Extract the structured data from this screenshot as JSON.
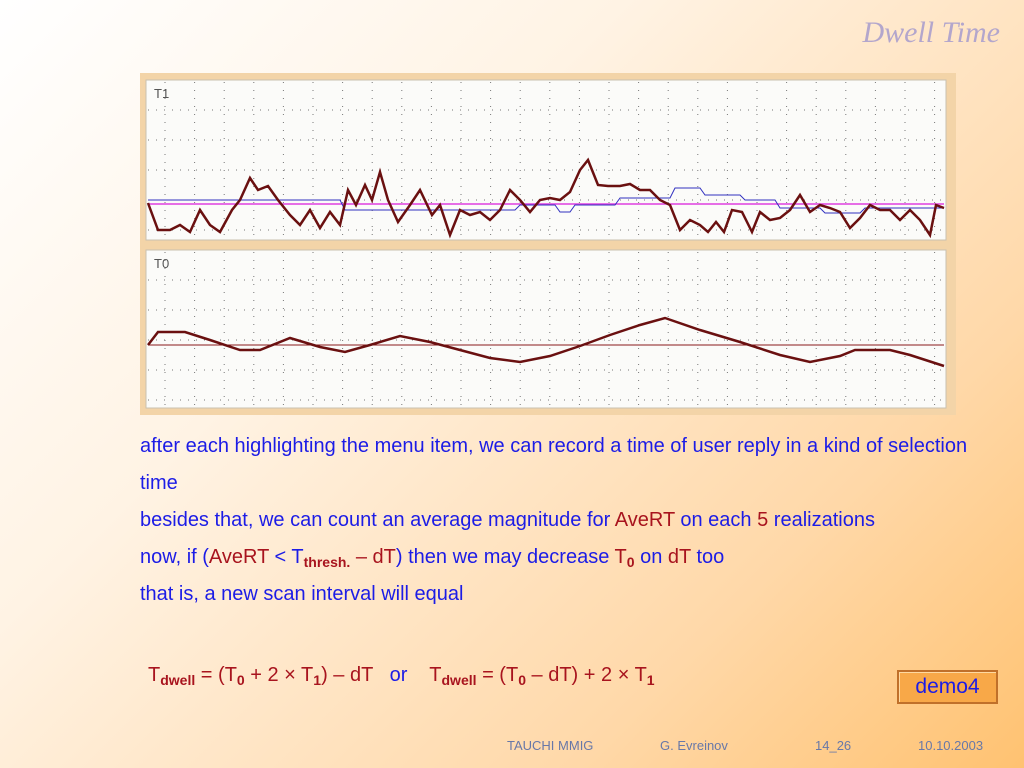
{
  "header": {
    "title": "Dwell Time"
  },
  "panels": [
    {
      "label": "T1"
    },
    {
      "label": "T0"
    }
  ],
  "paragraphs": [
    {
      "segments": [
        {
          "text": "after each highlighting the menu item, we can record a time of user reply in a kind of selection time",
          "kind": "n"
        }
      ]
    },
    {
      "segments": [
        {
          "text": "besides that, we can count an average magnitude for ",
          "kind": "n"
        },
        {
          "text": "AveRT",
          "kind": "a"
        },
        {
          "text": " on each ",
          "kind": "n"
        },
        {
          "text": "5",
          "kind": "a"
        },
        {
          "text": " realizations",
          "kind": "n"
        }
      ]
    },
    {
      "segments": [
        {
          "text": "now, if (",
          "kind": "n"
        },
        {
          "text": "AveRT",
          "kind": "a"
        },
        {
          "text": " < T",
          "kind": "n"
        },
        {
          "text": "thresh.",
          "kind": "s"
        },
        {
          "text": " – dT",
          "kind": "a"
        },
        {
          "text": ") then we may decrease ",
          "kind": "n"
        },
        {
          "text": "T",
          "kind": "a"
        },
        {
          "text": "0",
          "kind": "s"
        },
        {
          "text": " on ",
          "kind": "n"
        },
        {
          "text": "dT",
          "kind": "a"
        },
        {
          "text": " too",
          "kind": "n"
        }
      ]
    },
    {
      "segments": [
        {
          "text": "that is, a new scan interval will equal",
          "kind": "n"
        }
      ]
    }
  ],
  "formula": {
    "segments": [
      {
        "text": "T",
        "kind": "a"
      },
      {
        "text": "dwell",
        "kind": "s"
      },
      {
        "text": " = (T",
        "kind": "a"
      },
      {
        "text": "0",
        "kind": "s"
      },
      {
        "text": " + 2 × T",
        "kind": "a"
      },
      {
        "text": "1",
        "kind": "s"
      },
      {
        "text": ") – dT",
        "kind": "a"
      },
      {
        "text": "   or    ",
        "kind": "n"
      },
      {
        "text": "T",
        "kind": "a"
      },
      {
        "text": "dwell",
        "kind": "s"
      },
      {
        "text": " = (T",
        "kind": "a"
      },
      {
        "text": "0",
        "kind": "s"
      },
      {
        "text": " – dT) + 2 × T",
        "kind": "a"
      },
      {
        "text": "1",
        "kind": "s"
      }
    ]
  },
  "button": {
    "label": "demo4"
  },
  "footer": {
    "items": [
      "TAUCHI MMIG",
      "G. Evreinov",
      "14_26",
      "10.10.2003"
    ]
  }
}
